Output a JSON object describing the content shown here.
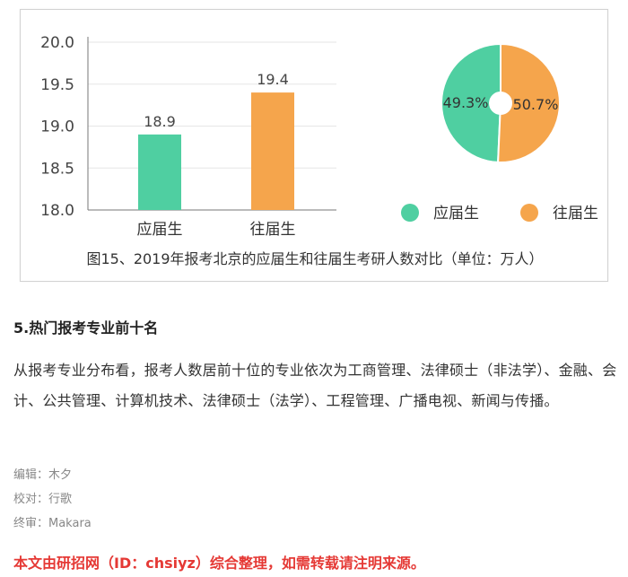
{
  "chart_data": [
    {
      "type": "bar",
      "categories": [
        "应届生",
        "往届生"
      ],
      "values": [
        18.9,
        19.4
      ],
      "value_labels": [
        "18.9",
        "19.4"
      ],
      "colors": [
        "#4fcfa1",
        "#f5a54c"
      ],
      "yticks": [
        "20.0",
        "19.5",
        "19.0",
        "18.5",
        "18.0"
      ],
      "ylim": [
        18.0,
        20.0
      ],
      "grid": true
    },
    {
      "type": "pie",
      "labels": [
        "应届生",
        "往届生"
      ],
      "values": [
        49.3,
        50.7
      ],
      "value_labels": [
        "49.3%",
        "50.7%"
      ],
      "colors": [
        "#4fcfa1",
        "#f5a54c"
      ],
      "legend": [
        "应届生",
        "往届生"
      ],
      "legend_placement": "bottom"
    }
  ],
  "figure": {
    "caption": "图15、2019年报考北京的应届生和往届生考研人数对比（单位：万人）"
  },
  "article": {
    "heading": "5.热门报考专业前十名",
    "paragraph": "从报考专业分布看，报考人数居前十位的专业依次为工商管理、法律硕士（非法学）、金融、会计、公共管理、计算机技术、法律硕士（法学）、工程管理、广播电视、新闻与传播。",
    "editor": "编辑：木夕",
    "proofreader": "校对：行歌",
    "final_review": "终审：Makara",
    "source_note": "本文由研招网（ID：chsiyz）综合整理，如需转载请注明来源。"
  }
}
